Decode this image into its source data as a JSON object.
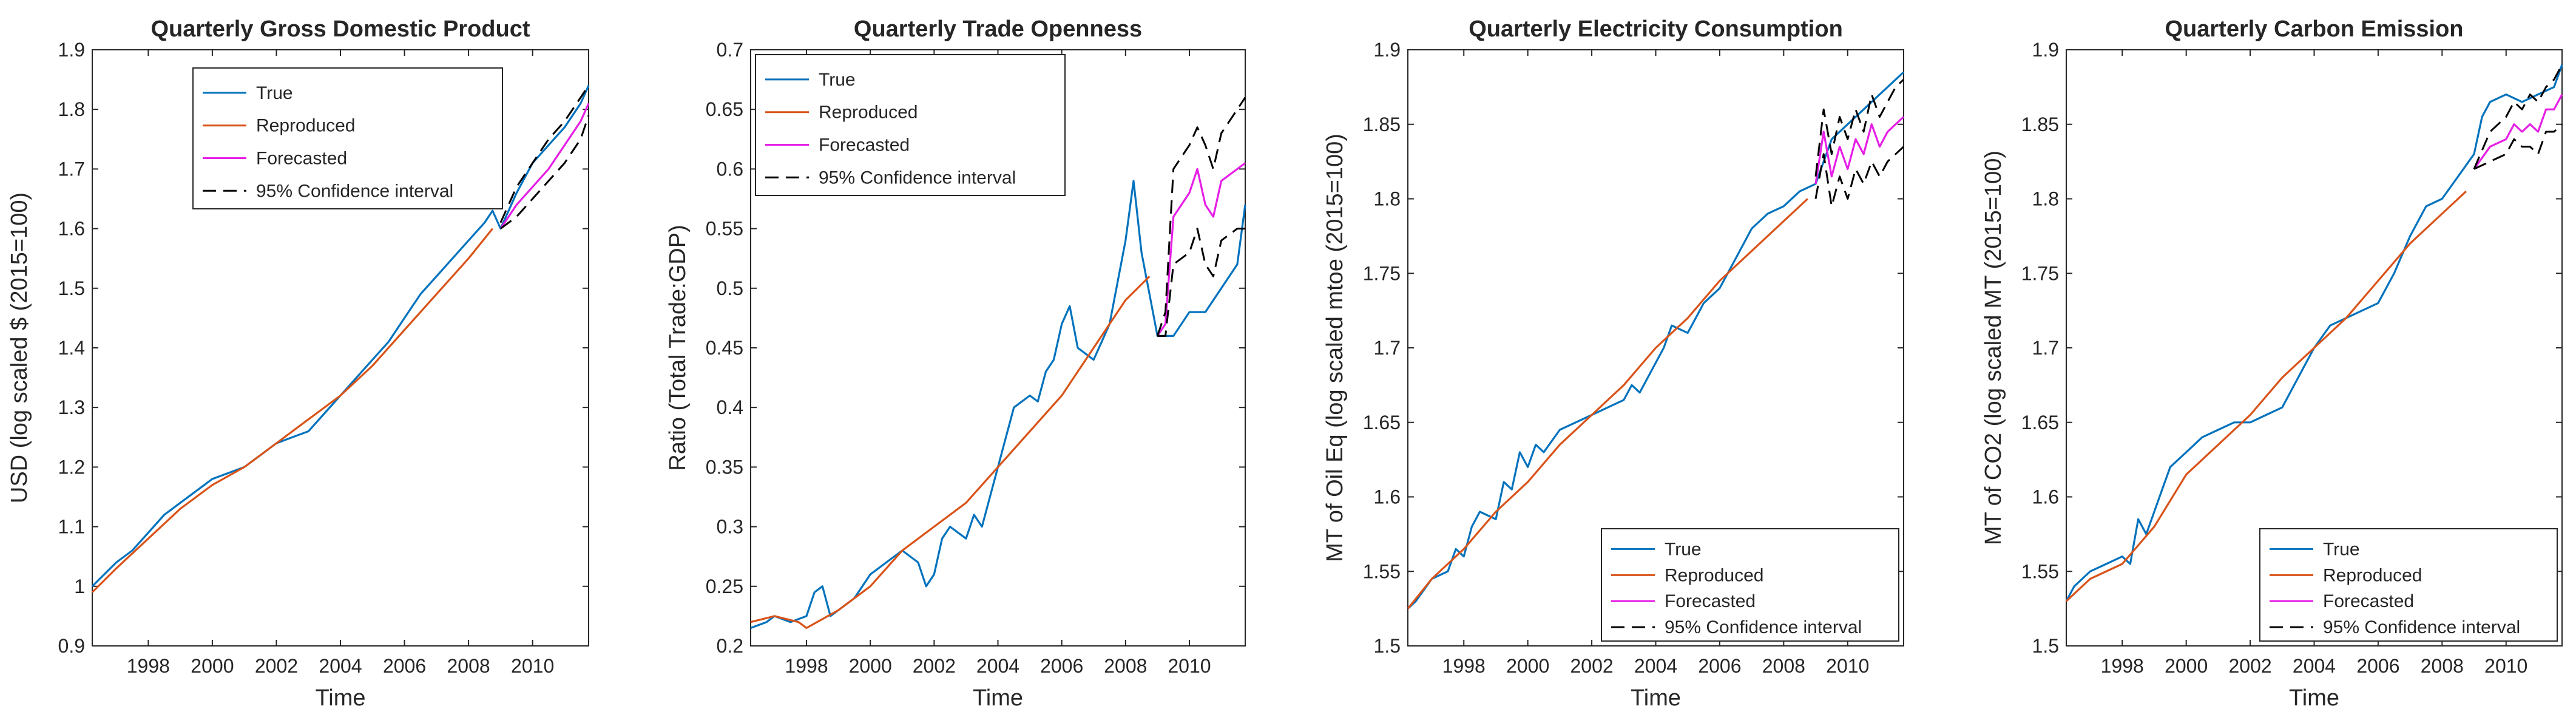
{
  "colors": {
    "true": "#0072bd",
    "reproduced": "#d95319",
    "forecasted": "#e61ee6",
    "ci": "#000000",
    "axis": "#262626"
  },
  "chart_data": [
    {
      "type": "line",
      "title": "Quarterly Gross Domestic Product",
      "xlabel": "Time",
      "ylabel": "USD (log scaled $ (2015=100)",
      "xlim": [
        1996.25,
        2011.75
      ],
      "ylim": [
        0.9,
        1.9
      ],
      "xticks": [
        1998,
        2000,
        2002,
        2004,
        2006,
        2008,
        2010
      ],
      "xtick_labels": [
        "1998",
        "2000",
        "2002",
        "2004",
        "2006",
        "2008",
        "2010"
      ],
      "yticks": [
        0.9,
        1.0,
        1.1,
        1.2,
        1.3,
        1.4,
        1.5,
        1.6,
        1.7,
        1.8,
        1.9
      ],
      "ytick_labels": [
        "0.9",
        "1",
        "1.1",
        "1.2",
        "1.3",
        "1.4",
        "1.5",
        "1.6",
        "1.7",
        "1.8",
        "1.9"
      ],
      "legend_location": "top-center",
      "legend": [
        "True",
        "Reproduced",
        "Forecasted",
        "95% Confidence interval"
      ],
      "series": [
        {
          "name": "True",
          "x": [
            1996.25,
            1997,
            1997.5,
            1998,
            1998.5,
            1999,
            1999.5,
            2000,
            2000.5,
            2001,
            2001.5,
            2002,
            2002.5,
            2003,
            2003.5,
            2004,
            2004.5,
            2005,
            2005.5,
            2006,
            2006.5,
            2007,
            2007.5,
            2008,
            2008.5,
            2008.75,
            2009,
            2009.5,
            2010,
            2010.5,
            2011,
            2011.5,
            2011.75
          ],
          "y": [
            1.0,
            1.04,
            1.06,
            1.09,
            1.12,
            1.14,
            1.16,
            1.18,
            1.19,
            1.2,
            1.22,
            1.24,
            1.25,
            1.26,
            1.29,
            1.32,
            1.35,
            1.38,
            1.41,
            1.45,
            1.49,
            1.52,
            1.55,
            1.58,
            1.61,
            1.63,
            1.6,
            1.66,
            1.71,
            1.74,
            1.77,
            1.81,
            1.84
          ]
        },
        {
          "name": "Reproduced",
          "x": [
            1996.25,
            1997,
            1998,
            1999,
            2000,
            2001,
            2002,
            2003,
            2004,
            2005,
            2006,
            2007,
            2008,
            2008.75
          ],
          "y": [
            0.99,
            1.03,
            1.08,
            1.13,
            1.17,
            1.2,
            1.24,
            1.28,
            1.32,
            1.37,
            1.43,
            1.49,
            1.55,
            1.6
          ]
        },
        {
          "name": "Forecasted",
          "x": [
            2009,
            2009.5,
            2010,
            2010.5,
            2011,
            2011.5,
            2011.75
          ],
          "y": [
            1.6,
            1.64,
            1.67,
            1.7,
            1.74,
            1.78,
            1.81
          ]
        },
        {
          "name": "95% Confidence interval upper",
          "x": [
            2009,
            2009.5,
            2010,
            2010.5,
            2011,
            2011.5,
            2011.75
          ],
          "y": [
            1.61,
            1.67,
            1.71,
            1.75,
            1.78,
            1.82,
            1.84
          ]
        },
        {
          "name": "95% Confidence interval lower",
          "x": [
            2009,
            2009.5,
            2010,
            2010.5,
            2011,
            2011.5,
            2011.75
          ],
          "y": [
            1.6,
            1.62,
            1.65,
            1.68,
            1.71,
            1.75,
            1.79
          ]
        }
      ]
    },
    {
      "type": "line",
      "title": "Quarterly Trade Openness",
      "xlabel": "Time",
      "ylabel": "Ratio (Total Trade:GDP)",
      "xlim": [
        1996.25,
        2011.75
      ],
      "ylim": [
        0.2,
        0.7
      ],
      "xticks": [
        1998,
        2000,
        2002,
        2004,
        2006,
        2008,
        2010
      ],
      "xtick_labels": [
        "1998",
        "2000",
        "2002",
        "2004",
        "2006",
        "2008",
        "2010"
      ],
      "yticks": [
        0.2,
        0.25,
        0.3,
        0.35,
        0.4,
        0.45,
        0.5,
        0.55,
        0.6,
        0.65,
        0.7
      ],
      "ytick_labels": [
        "0.2",
        "0.25",
        "0.3",
        "0.35",
        "0.4",
        "0.45",
        "0.5",
        "0.55",
        "0.6",
        "0.65",
        "0.7"
      ],
      "legend_location": "top-left",
      "legend": [
        "True",
        "Reproduced",
        "Forecasted",
        "95% Confidence interval"
      ],
      "series": [
        {
          "name": "True",
          "x": [
            1996.25,
            1996.75,
            1997,
            1997.5,
            1998,
            1998.25,
            1998.5,
            1998.75,
            1999,
            1999.5,
            2000,
            2000.5,
            2001,
            2001.5,
            2001.75,
            2002,
            2002.25,
            2002.5,
            2003,
            2003.25,
            2003.5,
            2004,
            2004.5,
            2005,
            2005.25,
            2005.5,
            2005.75,
            2006,
            2006.25,
            2006.5,
            2007,
            2007.25,
            2007.5,
            2008,
            2008.25,
            2008.5,
            2009,
            2009.5,
            2010,
            2010.5,
            2011,
            2011.5,
            2011.75
          ],
          "y": [
            0.215,
            0.22,
            0.225,
            0.22,
            0.225,
            0.245,
            0.25,
            0.225,
            0.23,
            0.24,
            0.26,
            0.27,
            0.28,
            0.27,
            0.25,
            0.26,
            0.29,
            0.3,
            0.29,
            0.31,
            0.3,
            0.35,
            0.4,
            0.41,
            0.405,
            0.43,
            0.44,
            0.47,
            0.485,
            0.45,
            0.44,
            0.455,
            0.47,
            0.54,
            0.59,
            0.53,
            0.46,
            0.46,
            0.48,
            0.48,
            0.5,
            0.52,
            0.57
          ]
        },
        {
          "name": "Reproduced",
          "x": [
            1996.25,
            1997,
            1997.75,
            1998,
            1999,
            2000,
            2001,
            2002,
            2003,
            2004,
            2005,
            2006,
            2007,
            2008,
            2008.75
          ],
          "y": [
            0.22,
            0.225,
            0.22,
            0.215,
            0.23,
            0.25,
            0.28,
            0.3,
            0.32,
            0.35,
            0.38,
            0.41,
            0.45,
            0.49,
            0.51
          ]
        },
        {
          "name": "Forecasted",
          "x": [
            2009,
            2009.25,
            2009.5,
            2010,
            2010.25,
            2010.5,
            2010.75,
            2011,
            2011.5,
            2011.75
          ],
          "y": [
            0.46,
            0.47,
            0.56,
            0.58,
            0.6,
            0.57,
            0.56,
            0.59,
            0.6,
            0.605
          ]
        },
        {
          "name": "95% Confidence interval upper",
          "x": [
            2009,
            2009.25,
            2009.5,
            2010,
            2010.25,
            2010.5,
            2010.75,
            2011,
            2011.5,
            2011.75
          ],
          "y": [
            0.46,
            0.48,
            0.6,
            0.62,
            0.635,
            0.62,
            0.6,
            0.63,
            0.65,
            0.66
          ]
        },
        {
          "name": "95% Confidence interval lower",
          "x": [
            2009,
            2009.25,
            2009.5,
            2010,
            2010.25,
            2010.5,
            2010.75,
            2011,
            2011.5,
            2011.75
          ],
          "y": [
            0.46,
            0.46,
            0.52,
            0.53,
            0.55,
            0.52,
            0.51,
            0.54,
            0.55,
            0.55
          ]
        }
      ]
    },
    {
      "type": "line",
      "title": "Quarterly Electricity Consumption",
      "xlabel": "Time",
      "ylabel": "MT of Oil Eq (log scaled mtoe (2015=100)",
      "xlim": [
        1996.25,
        2011.75
      ],
      "ylim": [
        1.5,
        1.9
      ],
      "xticks": [
        1998,
        2000,
        2002,
        2004,
        2006,
        2008,
        2010
      ],
      "xtick_labels": [
        "1998",
        "2000",
        "2002",
        "2004",
        "2006",
        "2008",
        "2010"
      ],
      "yticks": [
        1.5,
        1.55,
        1.6,
        1.65,
        1.7,
        1.75,
        1.8,
        1.85,
        1.9
      ],
      "ytick_labels": [
        "1.5",
        "1.55",
        "1.6",
        "1.65",
        "1.7",
        "1.75",
        "1.8",
        "1.85",
        "1.9"
      ],
      "legend_location": "bottom-right",
      "legend": [
        "True",
        "Reproduced",
        "Forecasted",
        "95% Confidence interval"
      ],
      "series": [
        {
          "name": "True",
          "x": [
            1996.25,
            1996.5,
            1997,
            1997.5,
            1997.75,
            1998,
            1998.25,
            1998.5,
            1999,
            1999.25,
            1999.5,
            1999.75,
            2000,
            2000.25,
            2000.5,
            2001,
            2001.5,
            2002,
            2002.5,
            2003,
            2003.25,
            2003.5,
            2004,
            2004.25,
            2004.5,
            2005,
            2005.25,
            2005.5,
            2006,
            2006.5,
            2007,
            2007.5,
            2008,
            2008.5,
            2009,
            2009.5,
            2010,
            2010.5,
            2011,
            2011.5,
            2011.75
          ],
          "y": [
            1.525,
            1.53,
            1.545,
            1.55,
            1.565,
            1.56,
            1.58,
            1.59,
            1.585,
            1.61,
            1.605,
            1.63,
            1.62,
            1.635,
            1.63,
            1.645,
            1.65,
            1.655,
            1.66,
            1.665,
            1.675,
            1.67,
            1.69,
            1.7,
            1.715,
            1.71,
            1.72,
            1.73,
            1.74,
            1.76,
            1.78,
            1.79,
            1.795,
            1.805,
            1.81,
            1.84,
            1.85,
            1.86,
            1.87,
            1.88,
            1.885
          ]
        },
        {
          "name": "Reproduced",
          "x": [
            1996.25,
            1997,
            1998,
            1999,
            2000,
            2001,
            2002,
            2003,
            2004,
            2005,
            2006,
            2007,
            2008,
            2008.75
          ],
          "y": [
            1.525,
            1.545,
            1.565,
            1.59,
            1.61,
            1.635,
            1.655,
            1.675,
            1.7,
            1.72,
            1.745,
            1.765,
            1.785,
            1.8
          ]
        },
        {
          "name": "Forecasted",
          "x": [
            2009,
            2009.25,
            2009.5,
            2009.75,
            2010,
            2010.25,
            2010.5,
            2010.75,
            2011,
            2011.25,
            2011.5,
            2011.75
          ],
          "y": [
            1.81,
            1.845,
            1.815,
            1.835,
            1.82,
            1.84,
            1.83,
            1.85,
            1.835,
            1.845,
            1.85,
            1.855
          ]
        },
        {
          "name": "95% Confidence interval upper",
          "x": [
            2009,
            2009.25,
            2009.5,
            2009.75,
            2010,
            2010.25,
            2010.5,
            2010.75,
            2011,
            2011.25,
            2011.5,
            2011.75
          ],
          "y": [
            1.815,
            1.86,
            1.83,
            1.855,
            1.84,
            1.86,
            1.845,
            1.87,
            1.855,
            1.865,
            1.875,
            1.88
          ]
        },
        {
          "name": "95% Confidence interval lower",
          "x": [
            2009,
            2009.25,
            2009.5,
            2009.75,
            2010,
            2010.25,
            2010.5,
            2010.75,
            2011,
            2011.25,
            2011.5,
            2011.75
          ],
          "y": [
            1.8,
            1.83,
            1.795,
            1.815,
            1.8,
            1.82,
            1.81,
            1.825,
            1.815,
            1.825,
            1.83,
            1.835
          ]
        }
      ]
    },
    {
      "type": "line",
      "title": "Quarterly Carbon Emission",
      "xlabel": "Time",
      "ylabel": "MT of CO2 (log scaled MT (2015=100)",
      "xlim": [
        1996.25,
        2011.75
      ],
      "ylim": [
        1.5,
        1.9
      ],
      "xticks": [
        1998,
        2000,
        2002,
        2004,
        2006,
        2008,
        2010
      ],
      "xtick_labels": [
        "1998",
        "2000",
        "2002",
        "2004",
        "2006",
        "2008",
        "2010"
      ],
      "yticks": [
        1.5,
        1.55,
        1.6,
        1.65,
        1.7,
        1.75,
        1.8,
        1.85,
        1.9
      ],
      "ytick_labels": [
        "1.5",
        "1.55",
        "1.6",
        "1.65",
        "1.7",
        "1.75",
        "1.8",
        "1.85",
        "1.9"
      ],
      "legend_location": "bottom-right",
      "legend": [
        "True",
        "Reproduced",
        "Forecasted",
        "95% Confidence interval"
      ],
      "series": [
        {
          "name": "True",
          "x": [
            1996.25,
            1996.5,
            1997,
            1997.5,
            1998,
            1998.25,
            1998.5,
            1998.75,
            1999,
            1999.25,
            1999.5,
            2000,
            2000.5,
            2001,
            2001.5,
            2002,
            2002.5,
            2003,
            2003.5,
            2004,
            2004.5,
            2005,
            2005.5,
            2006,
            2006.5,
            2007,
            2007.5,
            2008,
            2008.5,
            2009,
            2009.25,
            2009.5,
            2010,
            2010.5,
            2011,
            2011.5,
            2011.75
          ],
          "y": [
            1.53,
            1.54,
            1.55,
            1.555,
            1.56,
            1.555,
            1.585,
            1.575,
            1.59,
            1.605,
            1.62,
            1.63,
            1.64,
            1.645,
            1.65,
            1.65,
            1.655,
            1.66,
            1.68,
            1.7,
            1.715,
            1.72,
            1.725,
            1.73,
            1.75,
            1.775,
            1.795,
            1.8,
            1.815,
            1.83,
            1.855,
            1.865,
            1.87,
            1.865,
            1.87,
            1.875,
            1.89
          ]
        },
        {
          "name": "Reproduced",
          "x": [
            1996.25,
            1997,
            1998,
            1999,
            2000,
            2001,
            2002,
            2003,
            2004,
            2005,
            2006,
            2007,
            2008,
            2008.75
          ],
          "y": [
            1.53,
            1.545,
            1.555,
            1.58,
            1.615,
            1.635,
            1.655,
            1.68,
            1.7,
            1.72,
            1.745,
            1.77,
            1.79,
            1.805
          ]
        },
        {
          "name": "Forecasted",
          "x": [
            2009,
            2009.5,
            2010,
            2010.25,
            2010.5,
            2010.75,
            2011,
            2011.25,
            2011.5,
            2011.75
          ],
          "y": [
            1.82,
            1.835,
            1.84,
            1.85,
            1.845,
            1.85,
            1.845,
            1.86,
            1.86,
            1.87
          ]
        },
        {
          "name": "95% Confidence interval upper",
          "x": [
            2009,
            2009.5,
            2010,
            2010.25,
            2010.5,
            2010.75,
            2011,
            2011.25,
            2011.5,
            2011.75
          ],
          "y": [
            1.82,
            1.845,
            1.855,
            1.865,
            1.86,
            1.87,
            1.865,
            1.875,
            1.88,
            1.89
          ]
        },
        {
          "name": "95% Confidence interval lower",
          "x": [
            2009,
            2009.5,
            2010,
            2010.25,
            2010.5,
            2010.75,
            2011,
            2011.25,
            2011.5,
            2011.75
          ],
          "y": [
            1.82,
            1.825,
            1.83,
            1.84,
            1.835,
            1.835,
            1.83,
            1.845,
            1.845,
            1.85
          ]
        }
      ]
    }
  ]
}
